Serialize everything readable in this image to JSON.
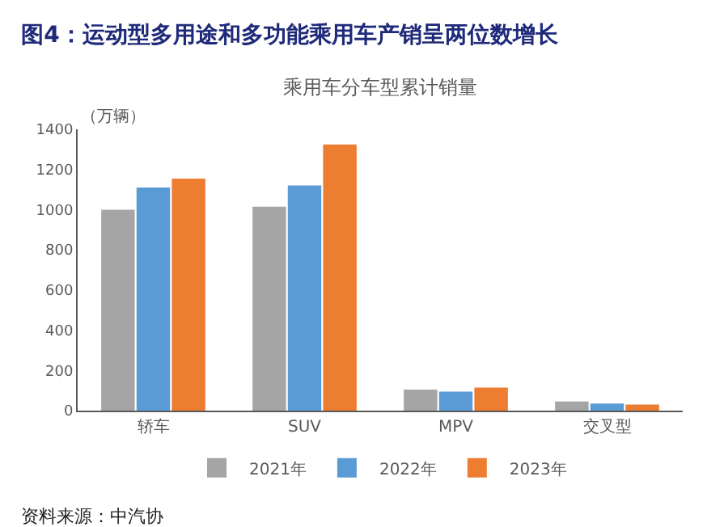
{
  "chart_data": {
    "type": "bar",
    "title": "图4：运动型多用途和多功能乘用车产销呈两位数增长",
    "subtitle": "乘用车分车型累计销量",
    "ylabel": "（万辆）",
    "categories": [
      "轿车",
      "SUV",
      "MPV",
      "交叉型"
    ],
    "series": [
      {
        "name": "2021年",
        "color": "#a5a5a5",
        "values": [
          1000,
          1015,
          105,
          45
        ]
      },
      {
        "name": "2022年",
        "color": "#5b9bd5",
        "values": [
          1110,
          1120,
          95,
          35
        ]
      },
      {
        "name": "2023年",
        "color": "#ed7d31",
        "values": [
          1155,
          1325,
          115,
          30
        ]
      }
    ],
    "ylim": [
      0,
      1400
    ],
    "yticks": [
      0,
      200,
      400,
      600,
      800,
      1000,
      1200,
      1400
    ],
    "legend": "bottom",
    "annotations": [
      "资料来源：中汽协"
    ]
  }
}
